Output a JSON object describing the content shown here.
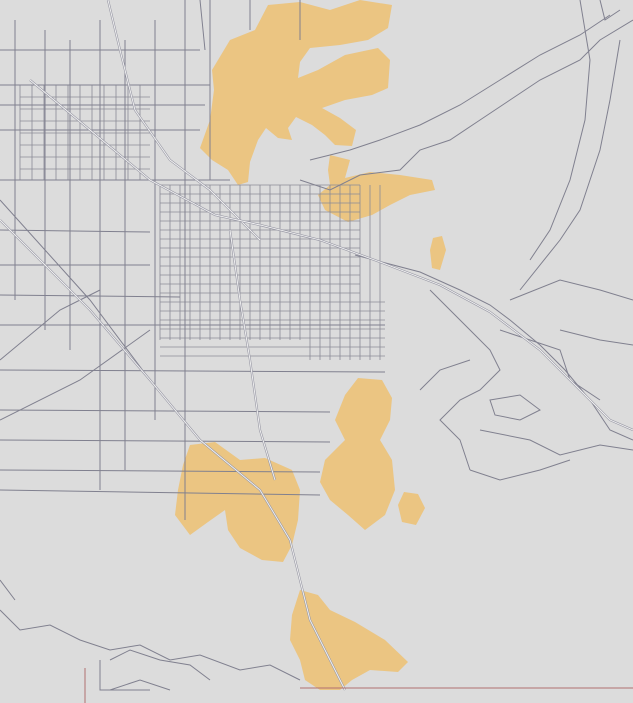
{
  "map": {
    "colors": {
      "background": "#dcdcdc",
      "roads": "#80808f",
      "highlighted_areas": "#ebc27a",
      "boundary": "#b07070"
    }
  }
}
